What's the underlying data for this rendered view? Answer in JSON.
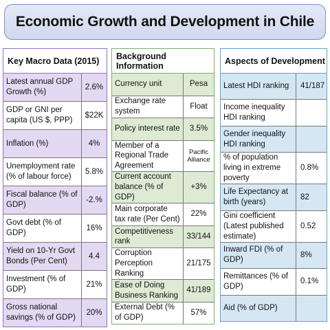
{
  "title": "Economic Growth and Development in Chile",
  "macro": {
    "heading": "Key Macro Data (2015)",
    "rows": [
      {
        "label": "Latest annual GDP Growth (%)",
        "value": "2.6%"
      },
      {
        "label": "GDP or GNI per capita (US $, PPP)",
        "value": "$22K"
      },
      {
        "label": "Inflation (%)",
        "value": "4%"
      },
      {
        "label": "Unemployment rate (% of labour force)",
        "value": "5.8%"
      },
      {
        "label": "Fiscal balance (% of GDP)",
        "value": "-2.%"
      },
      {
        "label": "Govt debt (% of GDP)",
        "value": "16%"
      },
      {
        "label": "Yield on 10-Yr Govt Bonds (Per Cent)",
        "value": "4.4"
      },
      {
        "label": "Investment (% of GDP)",
        "value": "21%"
      },
      {
        "label": "Gross national savings (% of GDP)",
        "value": "20%"
      }
    ]
  },
  "background": {
    "heading": "Background Information",
    "rows": [
      {
        "label": "Currency unit",
        "value": "Pesa"
      },
      {
        "label": "Exchange rate system",
        "value": "Float"
      },
      {
        "label": "Policy interest rate",
        "value": "3.5%"
      },
      {
        "label": "Member of a Regional Trade Agreement",
        "value": "Pacific Alliance"
      },
      {
        "label": "Current account balance (% of GDP)",
        "value": "+3%"
      },
      {
        "label": "Main corporate tax rate (Per Cent)",
        "value": "22%"
      },
      {
        "label": "Competitiveness rank",
        "value": "33/144"
      },
      {
        "label": "Corruption Perception Ranking",
        "value": "21/175"
      },
      {
        "label": "Ease of Doing Business Ranking",
        "value": "41/189"
      },
      {
        "label": "External Debt (% of GDP)",
        "value": "57%"
      }
    ]
  },
  "development": {
    "heading": "Aspects of Development",
    "rows": [
      {
        "label": "Latest HDI ranking",
        "value": "41/187"
      },
      {
        "label": "Income inequality HDI ranking",
        "value": ""
      },
      {
        "label": "Gender inequality HDI ranking",
        "value": ""
      },
      {
        "label": "% of population living in extreme poverty",
        "value": "0.8%"
      },
      {
        "label": "Life Expectancy at birth (years)",
        "value": "82"
      },
      {
        "label": "Gini coefficient (Latest published estimate)",
        "value": "0.52"
      },
      {
        "label": "Inward FDI (% of GDP)",
        "value": "8%"
      },
      {
        "label": "Remittances (% of GDP)",
        "value": "0.1%"
      },
      {
        "label": "Aid (% of GDP)",
        "value": ""
      }
    ]
  }
}
